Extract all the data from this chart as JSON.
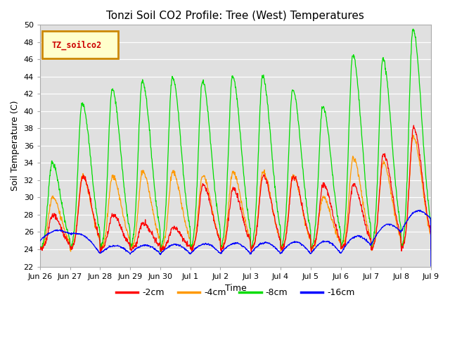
{
  "title": "Tonzi Soil CO2 Profile: Tree (West) Temperatures",
  "xlabel": "Time",
  "ylabel": "Soil Temperature (C)",
  "ylim": [
    22,
    50
  ],
  "yticks": [
    22,
    24,
    26,
    28,
    30,
    32,
    34,
    36,
    38,
    40,
    42,
    44,
    46,
    48,
    50
  ],
  "bg_color": "#e0e0e0",
  "legend_label": "TZ_soilco2",
  "legend_bg": "#ffffcc",
  "legend_border": "#cc8800",
  "series": [
    {
      "label": "-2cm",
      "color": "#ff0000"
    },
    {
      "label": "-4cm",
      "color": "#ff9900"
    },
    {
      "label": "-8cm",
      "color": "#00dd00"
    },
    {
      "label": "-16cm",
      "color": "#0000ff"
    }
  ],
  "x_tick_labels": [
    "Jun 26",
    "Jun 27",
    "Jun 28",
    "Jun 29",
    "Jun 30",
    "Jul 1",
    "Jul 2",
    "Jul 3",
    "Jul 4",
    "Jul 5",
    "Jul 6",
    "Jul 7",
    "Jul 8",
    "Jul 9"
  ],
  "n_ticks": 14,
  "peak_8cm": [
    34.0,
    41.0,
    42.5,
    43.5,
    44.0,
    43.5,
    44.0,
    44.0,
    42.5,
    40.5,
    46.5,
    46.0,
    49.5,
    26.0
  ],
  "peak_2cm": [
    28.0,
    32.5,
    28.0,
    27.0,
    26.5,
    31.5,
    31.0,
    32.5,
    32.5,
    31.5,
    31.5,
    35.0,
    38.0,
    26.0
  ],
  "peak_4cm": [
    30.0,
    32.5,
    32.5,
    33.0,
    33.0,
    32.5,
    33.0,
    33.0,
    32.5,
    30.0,
    34.5,
    34.0,
    37.0,
    26.0
  ],
  "base_16cm": [
    25.0,
    25.8,
    23.5,
    23.5,
    23.5,
    23.5,
    23.5,
    23.5,
    23.5,
    23.5,
    23.5,
    24.5,
    26.0,
    27.5
  ],
  "trough": 24.0
}
